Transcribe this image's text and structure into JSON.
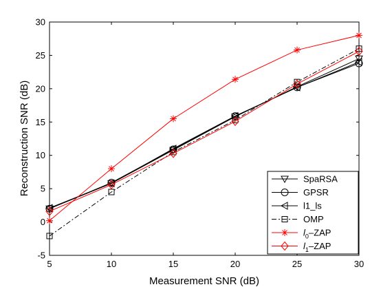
{
  "chart_data": {
    "type": "line",
    "title": "",
    "xlabel": "Measurement SNR (dB)",
    "ylabel": "Reconstruction SNR (dB)",
    "xlim": [
      5,
      30
    ],
    "ylim": [
      -5,
      30
    ],
    "xticks": [
      5,
      10,
      15,
      20,
      25,
      30
    ],
    "yticks": [
      -5,
      0,
      5,
      10,
      15,
      20,
      25,
      30
    ],
    "grid": false,
    "legend_position": "bottom-right",
    "x": [
      5,
      10,
      15,
      20,
      25,
      30
    ],
    "series": [
      {
        "name": "SpaRSA",
        "values": [
          2.0,
          5.8,
          10.8,
          15.8,
          20.3,
          24.5
        ],
        "color": "#000000",
        "dash": "solid",
        "marker": "triangle-down"
      },
      {
        "name": "GPSR",
        "values": [
          2.0,
          5.9,
          10.9,
          15.9,
          20.2,
          23.8
        ],
        "color": "#000000",
        "dash": "solid",
        "marker": "circle"
      },
      {
        "name": "l1_ls",
        "values": [
          2.1,
          5.8,
          11.0,
          15.9,
          20.2,
          24.0
        ],
        "color": "#000000",
        "dash": "solid",
        "marker": "triangle-left"
      },
      {
        "name": "OMP",
        "values": [
          -2.1,
          4.5,
          10.5,
          15.3,
          21.0,
          26.0
        ],
        "color": "#000000",
        "dash": "dashdot",
        "marker": "square"
      },
      {
        "name": "l0-ZAP",
        "values": [
          0.2,
          8.0,
          15.5,
          21.4,
          25.8,
          28.0
        ],
        "color": "#ff0000",
        "dash": "solid",
        "marker": "asterisk"
      },
      {
        "name": "l1-ZAP",
        "values": [
          1.6,
          5.6,
          10.3,
          15.1,
          20.7,
          25.6
        ],
        "color": "#ff0000",
        "dash": "solid",
        "marker": "diamond"
      }
    ],
    "legend": {
      "entries": [
        {
          "series": 0,
          "text": "SpaRSA",
          "sub": ""
        },
        {
          "series": 1,
          "text": "GPSR",
          "sub": ""
        },
        {
          "series": 2,
          "text": "l1_ls",
          "sub": ""
        },
        {
          "series": 3,
          "text": "OMP",
          "sub": ""
        },
        {
          "series": 4,
          "text": "l",
          "sub": "0",
          "tail": "–ZAP"
        },
        {
          "series": 5,
          "text": "l",
          "sub": "1",
          "tail": "–ZAP"
        }
      ]
    }
  }
}
